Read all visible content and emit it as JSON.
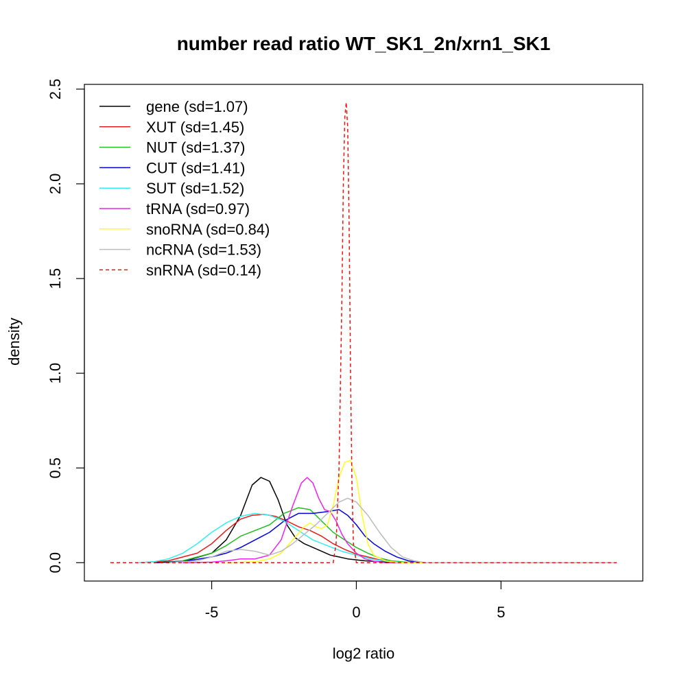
{
  "chart_data": {
    "type": "line",
    "title": "number read ratio WT_SK1_2n/xrn1_SK1",
    "xlabel": "log2 ratio",
    "ylabel": "density",
    "xlim": [
      -9.4,
      9.9
    ],
    "ylim": [
      -0.097,
      2.525
    ],
    "xticks": [
      -5,
      0,
      5
    ],
    "xtick_labels": [
      "-5",
      "0",
      "5"
    ],
    "yticks": [
      0.0,
      0.5,
      1.0,
      1.5,
      2.0,
      2.5
    ],
    "ytick_labels": [
      "0.0",
      "0.5",
      "1.0",
      "1.5",
      "2.0",
      "2.5"
    ],
    "legend_position": "top-left",
    "grid": false,
    "series": [
      {
        "name": "gene (sd=1.07)",
        "color": "#000000",
        "dash": "solid",
        "x": [
          -7.0,
          -6.0,
          -5.0,
          -4.5,
          -4.0,
          -3.6,
          -3.3,
          -3.0,
          -2.7,
          -2.4,
          -2.1,
          -1.8,
          -1.5,
          -1.2,
          -0.9,
          -0.6,
          -0.3,
          0.0,
          0.3,
          0.8,
          1.5,
          2.5,
          9.0
        ],
        "y": [
          0.0,
          0.005,
          0.05,
          0.12,
          0.25,
          0.41,
          0.45,
          0.43,
          0.33,
          0.2,
          0.13,
          0.1,
          0.08,
          0.06,
          0.04,
          0.03,
          0.02,
          0.015,
          0.01,
          0.005,
          0.0,
          0.0,
          0.0
        ]
      },
      {
        "name": "XUT (sd=1.45)",
        "color": "#e41a1c",
        "dash": "solid",
        "x": [
          -7.5,
          -6.5,
          -5.5,
          -5.0,
          -4.5,
          -4.0,
          -3.6,
          -3.2,
          -2.8,
          -2.4,
          -2.0,
          -1.6,
          -1.2,
          -0.8,
          -0.4,
          0.0,
          0.4,
          0.8,
          1.2,
          1.6,
          2.2,
          9.0
        ],
        "y": [
          0.0,
          0.01,
          0.05,
          0.1,
          0.17,
          0.23,
          0.25,
          0.255,
          0.245,
          0.22,
          0.19,
          0.17,
          0.14,
          0.1,
          0.07,
          0.045,
          0.03,
          0.015,
          0.008,
          0.003,
          0.0,
          0.0
        ]
      },
      {
        "name": "NUT (sd=1.37)",
        "color": "#22bb22",
        "dash": "solid",
        "x": [
          -7.0,
          -6.0,
          -5.0,
          -4.5,
          -4.0,
          -3.5,
          -3.0,
          -2.5,
          -2.0,
          -1.6,
          -1.2,
          -0.8,
          -0.4,
          0.0,
          0.4,
          0.8,
          1.2,
          1.7,
          2.2,
          9.0
        ],
        "y": [
          0.0,
          0.01,
          0.05,
          0.09,
          0.14,
          0.17,
          0.2,
          0.26,
          0.29,
          0.28,
          0.22,
          0.16,
          0.12,
          0.08,
          0.05,
          0.025,
          0.01,
          0.003,
          0.0,
          0.0
        ]
      },
      {
        "name": "CUT (sd=1.41)",
        "color": "#0000dd",
        "dash": "solid",
        "x": [
          -7.0,
          -6.0,
          -5.0,
          -4.5,
          -4.0,
          -3.5,
          -3.0,
          -2.5,
          -2.0,
          -1.5,
          -1.0,
          -0.6,
          -0.3,
          0.0,
          0.3,
          0.6,
          1.0,
          1.4,
          1.8,
          2.2,
          9.0
        ],
        "y": [
          0.0,
          0.005,
          0.03,
          0.05,
          0.08,
          0.12,
          0.16,
          0.22,
          0.26,
          0.26,
          0.27,
          0.28,
          0.25,
          0.2,
          0.14,
          0.1,
          0.06,
          0.03,
          0.01,
          0.0,
          0.0
        ]
      },
      {
        "name": "SUT (sd=1.52)",
        "color": "#33eeee",
        "dash": "solid",
        "x": [
          -7.5,
          -7.0,
          -6.5,
          -6.0,
          -5.5,
          -5.0,
          -4.5,
          -4.0,
          -3.5,
          -3.0,
          -2.5,
          -2.0,
          -1.5,
          -1.0,
          -0.5,
          0.0,
          0.5,
          1.0,
          1.5,
          2.2,
          9.0
        ],
        "y": [
          0.0,
          0.005,
          0.02,
          0.05,
          0.1,
          0.16,
          0.21,
          0.245,
          0.26,
          0.25,
          0.22,
          0.17,
          0.12,
          0.09,
          0.06,
          0.04,
          0.02,
          0.008,
          0.002,
          0.0,
          0.0
        ]
      },
      {
        "name": "tRNA (sd=0.97)",
        "color": "#ee22ee",
        "dash": "solid",
        "x": [
          -6.0,
          -5.0,
          -4.5,
          -4.0,
          -3.5,
          -3.0,
          -2.6,
          -2.2,
          -1.9,
          -1.7,
          -1.5,
          -1.3,
          -1.1,
          -0.9,
          -0.7,
          -0.5,
          -0.3,
          0.0,
          0.3,
          0.6,
          1.0,
          9.0
        ],
        "y": [
          0.0,
          0.003,
          0.01,
          0.02,
          0.02,
          0.04,
          0.12,
          0.3,
          0.42,
          0.45,
          0.42,
          0.34,
          0.28,
          0.27,
          0.22,
          0.15,
          0.1,
          0.05,
          0.02,
          0.008,
          0.0,
          0.0
        ]
      },
      {
        "name": "snoRNA (sd=0.84)",
        "color": "#ffff22",
        "dash": "solid",
        "x": [
          -4.5,
          -3.5,
          -3.0,
          -2.6,
          -2.2,
          -1.8,
          -1.6,
          -1.4,
          -1.2,
          -1.0,
          -0.8,
          -0.6,
          -0.4,
          -0.2,
          0.0,
          0.2,
          0.4,
          0.6,
          1.0,
          1.5,
          9.0
        ],
        "y": [
          0.0,
          0.005,
          0.02,
          0.05,
          0.12,
          0.19,
          0.21,
          0.19,
          0.18,
          0.2,
          0.3,
          0.45,
          0.53,
          0.54,
          0.45,
          0.25,
          0.1,
          0.04,
          0.01,
          0.0,
          0.0
        ]
      },
      {
        "name": "ncRNA (sd=1.53)",
        "color": "#bbbbbb",
        "dash": "solid",
        "x": [
          -6.5,
          -5.5,
          -5.0,
          -4.5,
          -4.0,
          -3.5,
          -3.0,
          -2.6,
          -2.2,
          -1.8,
          -1.4,
          -1.0,
          -0.6,
          -0.3,
          0.0,
          0.4,
          0.8,
          1.2,
          1.6,
          2.0,
          2.4,
          9.0
        ],
        "y": [
          0.0,
          0.01,
          0.03,
          0.06,
          0.07,
          0.06,
          0.04,
          0.06,
          0.1,
          0.15,
          0.2,
          0.26,
          0.32,
          0.34,
          0.32,
          0.25,
          0.16,
          0.08,
          0.03,
          0.01,
          0.0,
          0.0
        ]
      },
      {
        "name": "snRNA (sd=0.14)",
        "color": "#ee1111",
        "dash": "dashed",
        "x": [
          -8.5,
          -0.8,
          -0.7,
          -0.6,
          -0.5,
          -0.45,
          -0.4,
          -0.35,
          -0.3,
          -0.25,
          -0.2,
          -0.15,
          -0.1,
          0.0,
          0.1,
          9.0
        ],
        "y": [
          0.0,
          0.0,
          0.1,
          0.5,
          1.4,
          2.0,
          2.35,
          2.43,
          2.3,
          1.8,
          1.0,
          0.4,
          0.1,
          0.0,
          0.0,
          0.0
        ]
      }
    ]
  }
}
